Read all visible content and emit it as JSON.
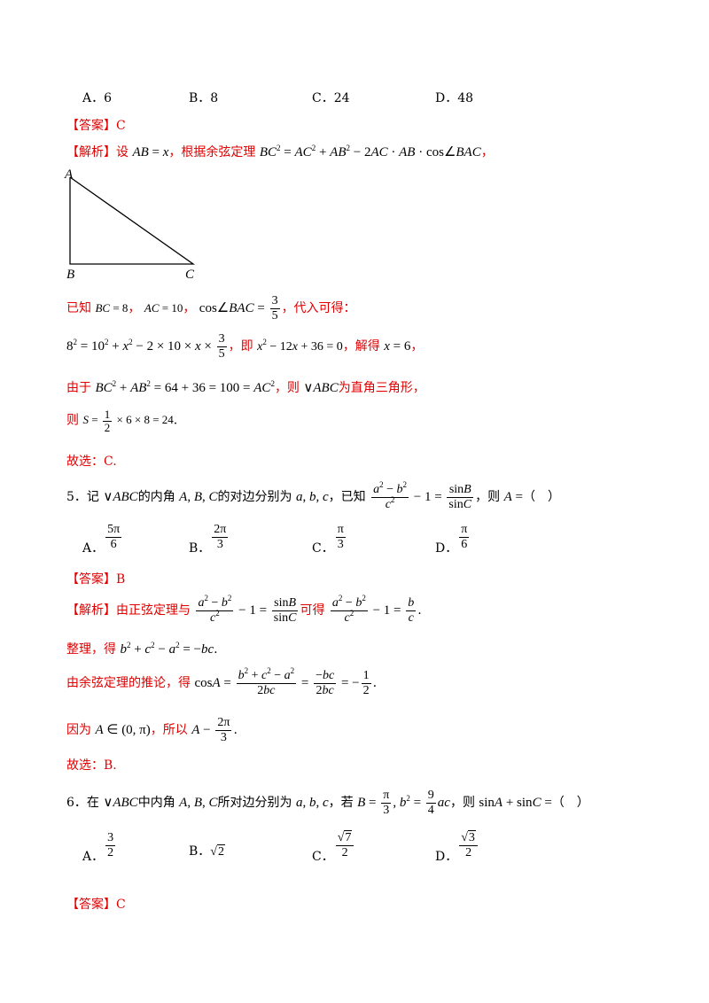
{
  "q4": {
    "options": [
      "A．6",
      "B．8",
      "C．24",
      "D．48"
    ],
    "answer_label": "【答案】",
    "answer": "C",
    "analysis_label": "【解析】",
    "analysis_intro": "设",
    "analysis_mid": "，根据余弦定理",
    "figure_labels": {
      "A": "A",
      "B": "B",
      "C": "C"
    },
    "known_label": "已知",
    "subst_label": "，代入可得：",
    "ji": "，即",
    "jiede": "，解得",
    "youyu": "由于",
    "ze_rt": "，则",
    "rt_text": "为直角三角形，",
    "ze": "则",
    "guxuan": "故选：C."
  },
  "q5": {
    "stem_num": "5．记",
    "stem_a": "的内角",
    "stem_b": "的对边分别为",
    "stem_c": "，已知",
    "stem_d": "，则",
    "options": [
      "A．",
      "B．",
      "C．",
      "D．"
    ],
    "option_values": [
      [
        "5π",
        "6"
      ],
      [
        "2π",
        "3"
      ],
      [
        "π",
        "3"
      ],
      [
        "π",
        "6"
      ]
    ],
    "answer_label": "【答案】",
    "answer": "B",
    "analysis_label": "【解析】",
    "analysis_a": "由正弦定理与",
    "analysis_b": "可得",
    "zhengli": "整理，得",
    "tuilun": "由余弦定理的推论，得",
    "yinwei": "因为",
    "suoyi": "，所以",
    "guxuan": "故选：B."
  },
  "q6": {
    "stem_num": "6．在",
    "stem_a": "中内角",
    "stem_b": "所对边分别为",
    "stem_c": "，若",
    "stem_d": "，则",
    "options": [
      "A．",
      "B．",
      "C．",
      "D．"
    ],
    "answer_label": "【答案】",
    "answer": "C"
  }
}
